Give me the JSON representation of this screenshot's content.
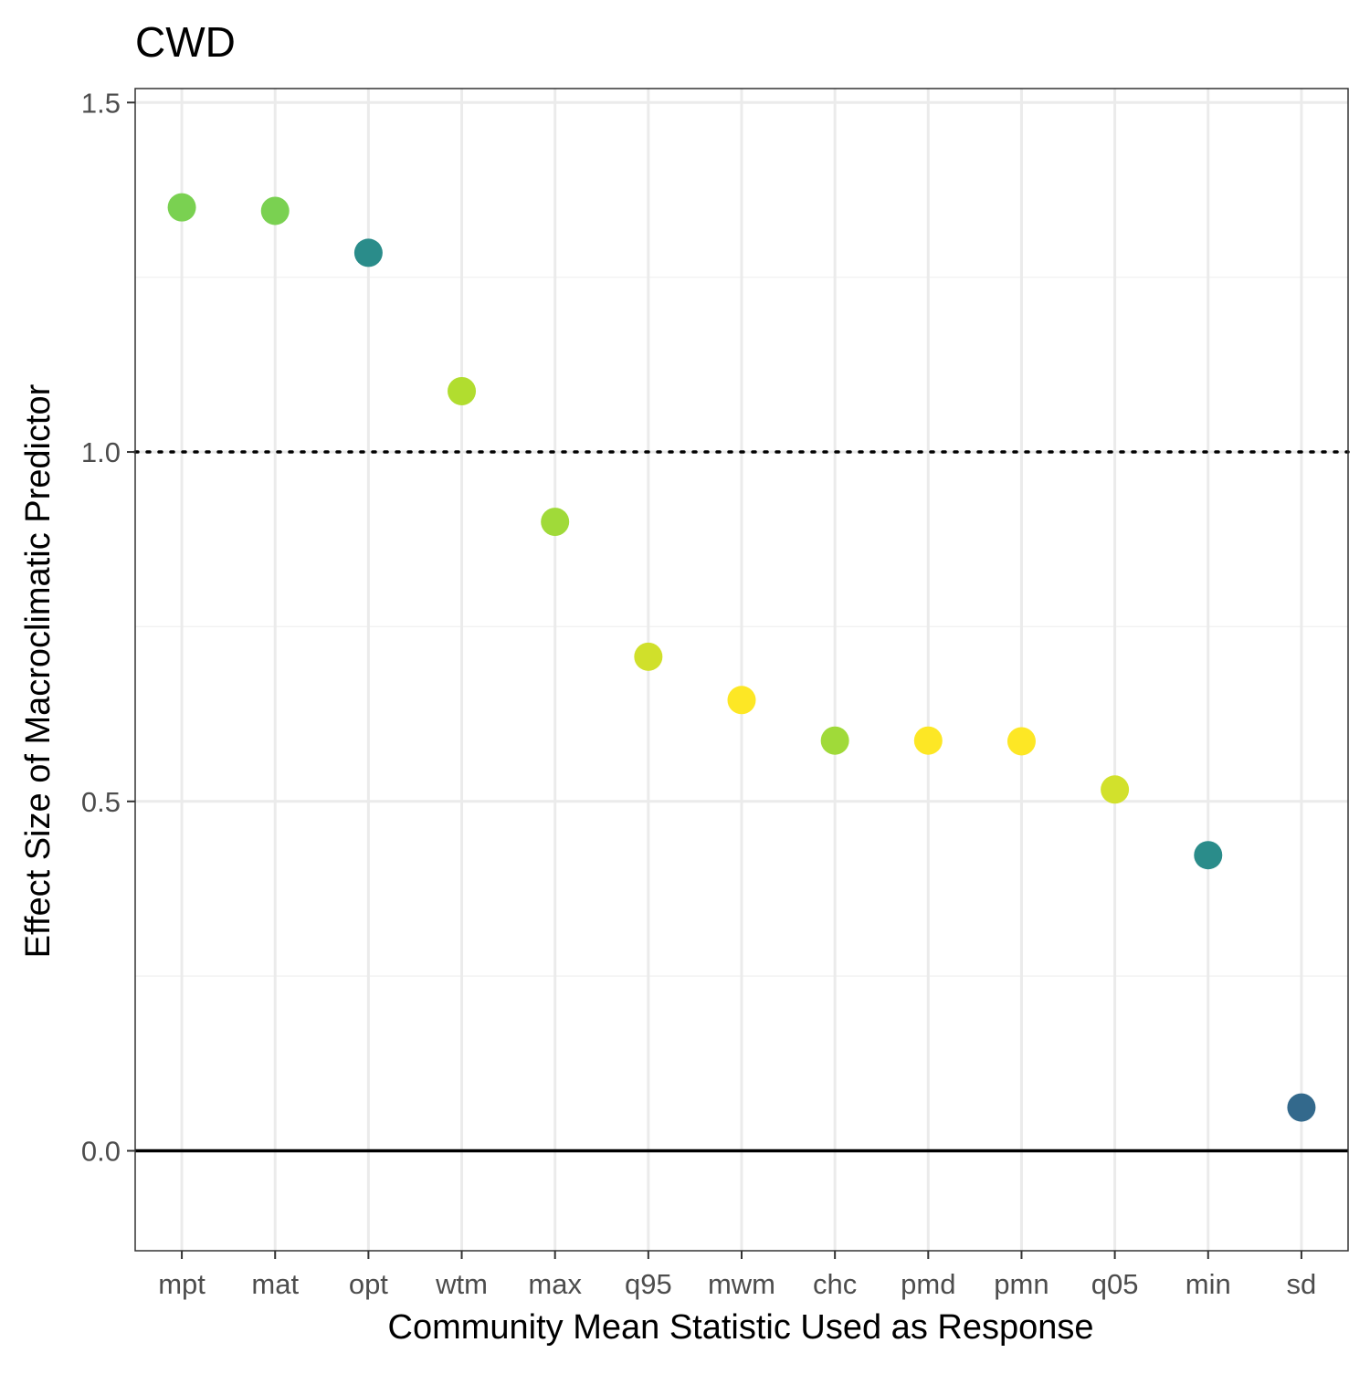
{
  "chart_data": {
    "type": "scatter",
    "title": "CWD",
    "xlabel": "Community Mean Statistic Used as Response",
    "ylabel": "Effect Size of Macroclimatic Predictor",
    "categories": [
      "mpt",
      "mat",
      "opt",
      "wtm",
      "max",
      "q95",
      "mwm",
      "chc",
      "pmd",
      "pmn",
      "q05",
      "min",
      "sd"
    ],
    "values": [
      1.35,
      1.345,
      1.285,
      1.087,
      0.9,
      0.707,
      0.645,
      0.587,
      0.587,
      0.586,
      0.517,
      0.423,
      0.062
    ],
    "colors": [
      "#7AD151",
      "#7AD151",
      "#2A8C8A",
      "#B1DD2F",
      "#A0DA39",
      "#D0E02B",
      "#FDE725",
      "#A0DA39",
      "#FDE725",
      "#FDE725",
      "#D2E12C",
      "#2A8C8A",
      "#33698C"
    ],
    "ylim": [
      -0.143,
      1.52
    ],
    "yticks": [
      0.0,
      0.5,
      1.0,
      1.5
    ],
    "ytick_labels": [
      "0.0",
      "0.5",
      "1.0",
      "1.5"
    ],
    "reference_lines": [
      {
        "y": 1.0,
        "style": "dotted"
      },
      {
        "y": 0.0,
        "style": "solid"
      }
    ],
    "grid": true,
    "legend": "none"
  }
}
